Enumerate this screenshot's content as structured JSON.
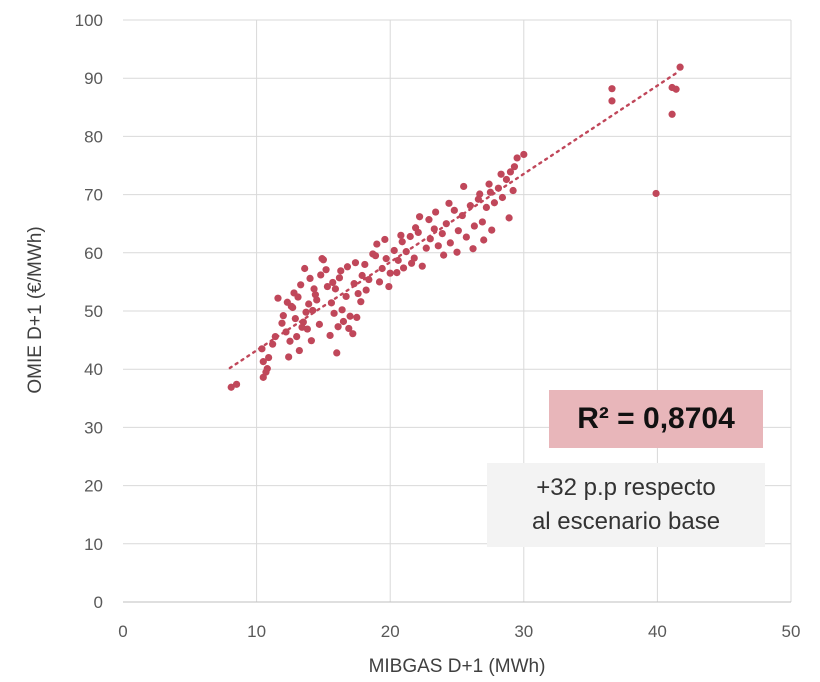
{
  "chart_data": {
    "type": "scatter",
    "title": "",
    "xlabel": "MIBGAS D+1 (MWh)",
    "ylabel": "OMIE D+1 (€/MWh)",
    "xlim": [
      0,
      50
    ],
    "ylim": [
      0,
      100
    ],
    "xticks": [
      "0",
      "10",
      "20",
      "30",
      "40",
      "50"
    ],
    "yticks": [
      "0",
      "10",
      "20",
      "30",
      "40",
      "50",
      "60",
      "70",
      "80",
      "90",
      "100"
    ],
    "grid": true,
    "legend": "none",
    "trendline": {
      "type": "linear",
      "x": [
        8,
        41.5
      ],
      "y": [
        40.2,
        91.0
      ],
      "style": "dotted"
    },
    "colors": {
      "points": "#c0475a",
      "trendline": "#c0475a",
      "r2_box": "#e8b6ba",
      "note_box": "#f3f3f3"
    },
    "annotations": {
      "r2": "R² = 0,8704",
      "note_line1": "+32 p.p respecto",
      "note_line2": "al escenario base"
    },
    "series": [
      {
        "points": [
          [
            8.1,
            36.9
          ],
          [
            8.5,
            37.4
          ],
          [
            10.5,
            38.6
          ],
          [
            10.7,
            39.5
          ],
          [
            10.5,
            41.3
          ],
          [
            10.8,
            40.1
          ],
          [
            10.4,
            43.5
          ],
          [
            10.9,
            42.0
          ],
          [
            11.2,
            44.3
          ],
          [
            11.4,
            45.6
          ],
          [
            11.9,
            47.9
          ],
          [
            12.2,
            46.4
          ],
          [
            12.0,
            49.2
          ],
          [
            12.6,
            50.8
          ],
          [
            12.9,
            48.7
          ],
          [
            13.1,
            52.4
          ],
          [
            13.3,
            54.5
          ],
          [
            13.6,
            57.3
          ],
          [
            13.2,
            43.2
          ],
          [
            12.4,
            42.1
          ],
          [
            14.0,
            55.6
          ],
          [
            14.3,
            53.8
          ],
          [
            14.5,
            51.9
          ],
          [
            14.8,
            56.2
          ],
          [
            15.0,
            58.8
          ],
          [
            15.3,
            54.2
          ],
          [
            15.6,
            51.4
          ],
          [
            15.8,
            49.6
          ],
          [
            16.1,
            47.3
          ],
          [
            16.0,
            42.8
          ],
          [
            13.8,
            46.9
          ],
          [
            13.5,
            48.1
          ],
          [
            14.2,
            50.1
          ],
          [
            14.7,
            47.7
          ],
          [
            13.0,
            45.6
          ],
          [
            12.3,
            51.5
          ],
          [
            12.8,
            53.1
          ],
          [
            11.6,
            52.2
          ],
          [
            12.5,
            44.8
          ],
          [
            13.9,
            51.2
          ],
          [
            16.4,
            50.2
          ],
          [
            16.7,
            52.5
          ],
          [
            17.0,
            49.1
          ],
          [
            17.3,
            54.7
          ],
          [
            17.6,
            53.0
          ],
          [
            17.9,
            56.1
          ],
          [
            18.1,
            58.0
          ],
          [
            18.4,
            55.4
          ],
          [
            18.7,
            59.8
          ],
          [
            19.0,
            61.5
          ],
          [
            16.5,
            48.2
          ],
          [
            16.9,
            47.0
          ],
          [
            17.2,
            46.1
          ],
          [
            17.5,
            48.9
          ],
          [
            17.8,
            51.6
          ],
          [
            18.2,
            53.6
          ],
          [
            16.2,
            55.7
          ],
          [
            16.8,
            57.6
          ],
          [
            17.4,
            58.3
          ],
          [
            15.9,
            53.8
          ],
          [
            19.4,
            57.3
          ],
          [
            19.7,
            59.0
          ],
          [
            20.0,
            56.5
          ],
          [
            20.3,
            60.4
          ],
          [
            20.6,
            58.7
          ],
          [
            20.9,
            61.9
          ],
          [
            21.2,
            60.2
          ],
          [
            21.5,
            62.8
          ],
          [
            21.8,
            59.1
          ],
          [
            22.1,
            63.5
          ],
          [
            19.2,
            55.0
          ],
          [
            19.9,
            54.2
          ],
          [
            20.5,
            56.6
          ],
          [
            21.0,
            57.4
          ],
          [
            21.6,
            58.2
          ],
          [
            22.4,
            57.7
          ],
          [
            22.7,
            60.8
          ],
          [
            23.0,
            62.4
          ],
          [
            23.3,
            64.1
          ],
          [
            23.6,
            61.2
          ],
          [
            22.2,
            66.2
          ],
          [
            22.9,
            65.7
          ],
          [
            23.9,
            63.3
          ],
          [
            24.2,
            65.0
          ],
          [
            24.5,
            61.7
          ],
          [
            24.8,
            67.3
          ],
          [
            25.1,
            63.8
          ],
          [
            25.4,
            66.4
          ],
          [
            25.7,
            62.7
          ],
          [
            26.0,
            68.1
          ],
          [
            26.3,
            64.6
          ],
          [
            26.6,
            69.2
          ],
          [
            26.9,
            65.3
          ],
          [
            27.2,
            67.8
          ],
          [
            27.5,
            70.4
          ],
          [
            27.8,
            68.6
          ],
          [
            28.1,
            71.1
          ],
          [
            28.4,
            69.5
          ],
          [
            28.7,
            72.6
          ],
          [
            29.0,
            73.9
          ],
          [
            25.5,
            71.4
          ],
          [
            26.2,
            60.7
          ],
          [
            24.0,
            59.6
          ],
          [
            25.0,
            60.1
          ],
          [
            27.0,
            62.2
          ],
          [
            27.6,
            63.9
          ],
          [
            28.9,
            66.0
          ],
          [
            29.3,
            74.8
          ],
          [
            29.5,
            76.3
          ],
          [
            30.0,
            76.9
          ],
          [
            29.2,
            70.7
          ],
          [
            28.3,
            73.5
          ],
          [
            27.4,
            71.8
          ],
          [
            26.7,
            70.1
          ],
          [
            23.4,
            67.0
          ],
          [
            24.4,
            68.5
          ],
          [
            21.9,
            64.3
          ],
          [
            20.8,
            63.0
          ],
          [
            19.6,
            62.3
          ],
          [
            18.9,
            59.5
          ],
          [
            15.2,
            57.1
          ],
          [
            14.9,
            59.0
          ],
          [
            15.5,
            45.8
          ],
          [
            14.1,
            44.9
          ],
          [
            13.7,
            49.8
          ],
          [
            12.7,
            50.6
          ],
          [
            13.4,
            47.2
          ],
          [
            14.4,
            52.8
          ],
          [
            15.7,
            54.9
          ],
          [
            16.3,
            56.9
          ],
          [
            36.6,
            88.2
          ],
          [
            36.6,
            86.1
          ],
          [
            41.1,
            88.4
          ],
          [
            41.4,
            88.1
          ],
          [
            41.7,
            91.9
          ],
          [
            41.1,
            83.8
          ],
          [
            39.9,
            70.2
          ]
        ]
      }
    ]
  }
}
